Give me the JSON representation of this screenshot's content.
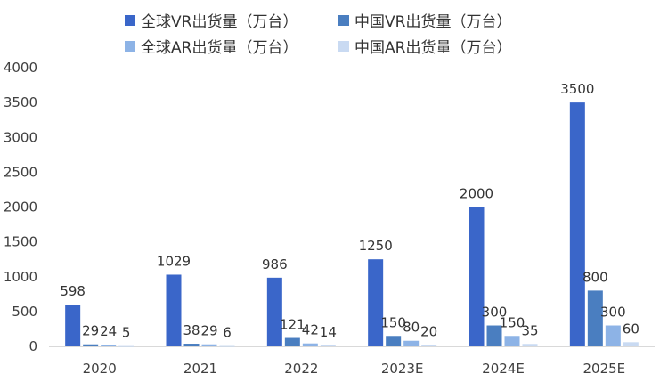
{
  "chart_data": {
    "type": "bar",
    "categories": [
      "2020",
      "2021",
      "2022",
      "2023E",
      "2024E",
      "2025E"
    ],
    "series": [
      {
        "name": "全球VR出货量（万台）",
        "color": "#3A66C9",
        "values": [
          598,
          1029,
          986,
          1250,
          2000,
          3500
        ],
        "labels": [
          "598",
          "1029",
          "986",
          "1250",
          "2000",
          "3500"
        ]
      },
      {
        "name": "中国VR出货量（万台）",
        "color": "#4A7EC0",
        "values": [
          29,
          38,
          121,
          150,
          300,
          800
        ],
        "labels": [
          "29",
          "38",
          "121",
          "150",
          "300",
          "800"
        ]
      },
      {
        "name": "全球AR出货量（万台）",
        "color": "#8DB3E6",
        "values": [
          24,
          29,
          42,
          80,
          150,
          300
        ],
        "labels": [
          "24",
          "29",
          "42",
          "80",
          "150",
          "300"
        ]
      },
      {
        "name": "中国AR出货量（万台）",
        "color": "#C9DAF2",
        "values": [
          5,
          6,
          14,
          20,
          35,
          60
        ],
        "labels": [
          "5",
          "6",
          "14",
          "20",
          "35",
          "60"
        ]
      }
    ],
    "ylim": [
      0,
      4000
    ],
    "yticks": [
      "0",
      "500",
      "1000",
      "1500",
      "2000",
      "2500",
      "3000",
      "3500",
      "4000"
    ],
    "legend_position": "top",
    "grid": false
  }
}
